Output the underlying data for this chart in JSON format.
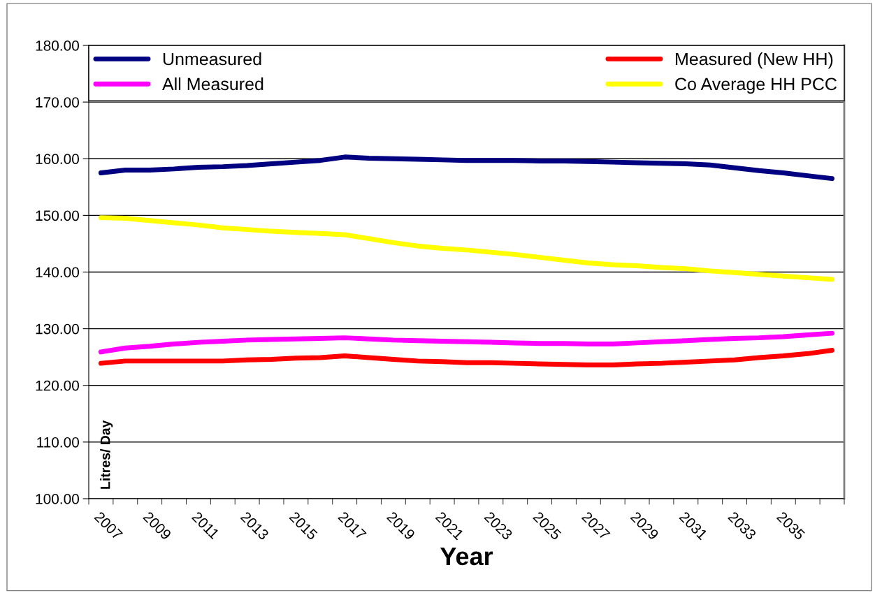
{
  "chart_data": {
    "type": "line",
    "xlabel": "Year",
    "ylabel": "Litres/ Day",
    "categories": [
      "2007",
      null,
      "2009",
      null,
      "2011",
      null,
      "2013",
      null,
      "2015",
      null,
      "2017",
      null,
      "2019",
      null,
      "2021",
      null,
      "2023",
      null,
      "2025",
      null,
      "2027",
      null,
      "2029",
      null,
      "2031",
      null,
      "2033",
      null,
      "2035",
      null,
      null
    ],
    "series": [
      {
        "name": "Unmeasured",
        "color": "#000080",
        "values": [
          157.5,
          158.0,
          158.0,
          158.2,
          158.5,
          158.6,
          158.8,
          159.1,
          159.4,
          159.7,
          160.3,
          160.1,
          160.0,
          159.9,
          159.8,
          159.7,
          159.7,
          159.7,
          159.6,
          159.6,
          159.5,
          159.4,
          159.3,
          159.2,
          159.1,
          158.9,
          158.4,
          157.9,
          157.5,
          157.0,
          156.5
        ]
      },
      {
        "name": "Measured (New HH)",
        "color": "#ff0000",
        "values": [
          123.9,
          124.3,
          124.3,
          124.3,
          124.3,
          124.3,
          124.5,
          124.6,
          124.8,
          124.9,
          125.2,
          124.9,
          124.6,
          124.3,
          124.2,
          124.0,
          124.0,
          123.9,
          123.8,
          123.7,
          123.6,
          123.6,
          123.8,
          123.9,
          124.1,
          124.3,
          124.5,
          124.9,
          125.2,
          125.6,
          126.2
        ]
      },
      {
        "name": "All Measured",
        "color": "#ff00ff",
        "values": [
          125.9,
          126.6,
          126.9,
          127.3,
          127.6,
          127.8,
          128.0,
          128.1,
          128.2,
          128.3,
          128.4,
          128.2,
          128.0,
          127.9,
          127.8,
          127.7,
          127.6,
          127.5,
          127.4,
          127.4,
          127.3,
          127.3,
          127.5,
          127.7,
          127.9,
          128.1,
          128.3,
          128.4,
          128.6,
          128.9,
          129.2
        ]
      },
      {
        "name": "Co Average HH PCC",
        "color": "#ffff00",
        "values": [
          149.6,
          149.5,
          149.1,
          148.7,
          148.3,
          147.8,
          147.5,
          147.2,
          147.0,
          146.8,
          146.6,
          145.9,
          145.2,
          144.6,
          144.2,
          143.9,
          143.5,
          143.1,
          142.6,
          142.1,
          141.6,
          141.3,
          141.1,
          140.8,
          140.6,
          140.2,
          139.9,
          139.6,
          139.3,
          139.0,
          138.7
        ]
      }
    ],
    "ylim": [
      100,
      180
    ],
    "yticks": [
      {
        "value": 100,
        "label": "100.00"
      },
      {
        "value": 110,
        "label": "110.00"
      },
      {
        "value": 120,
        "label": "120.00"
      },
      {
        "value": 130,
        "label": "130.00"
      },
      {
        "value": 140,
        "label": "140.00"
      },
      {
        "value": 150,
        "label": "150.00"
      },
      {
        "value": 160,
        "label": "160.00"
      },
      {
        "value": 170,
        "label": "170.00"
      },
      {
        "value": 180,
        "label": "180.00"
      }
    ],
    "grid": "y",
    "legend": "top",
    "marker": "none",
    "line_style": "solid"
  }
}
